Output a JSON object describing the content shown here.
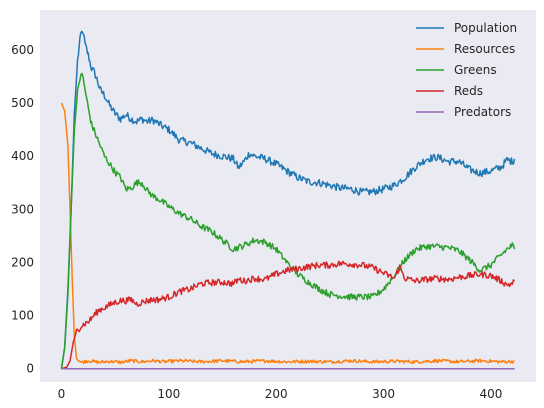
{
  "chart_data": {
    "type": "line",
    "title": "",
    "xlabel": "",
    "ylabel": "",
    "xlim": [
      -20,
      442
    ],
    "ylim": [
      -25,
      675
    ],
    "xticks": [
      0,
      100,
      200,
      300,
      400
    ],
    "yticks": [
      0,
      100,
      200,
      300,
      400,
      500,
      600
    ],
    "grid": false,
    "background": "#eaeaf2",
    "legend_position": "top-right",
    "series": [
      {
        "name": "Population",
        "color": "#1f77b4",
        "points": [
          [
            0,
            0
          ],
          [
            3,
            40
          ],
          [
            6,
            150
          ],
          [
            9,
            300
          ],
          [
            12,
            480
          ],
          [
            15,
            580
          ],
          [
            18,
            630
          ],
          [
            20,
            635
          ],
          [
            22,
            610
          ],
          [
            25,
            590
          ],
          [
            28,
            565
          ],
          [
            30,
            560
          ],
          [
            33,
            545
          ],
          [
            36,
            525
          ],
          [
            40,
            515
          ],
          [
            45,
            495
          ],
          [
            50,
            480
          ],
          [
            55,
            470
          ],
          [
            60,
            478
          ],
          [
            65,
            470
          ],
          [
            70,
            465
          ],
          [
            75,
            470
          ],
          [
            80,
            465
          ],
          [
            85,
            468
          ],
          [
            90,
            462
          ],
          [
            95,
            455
          ],
          [
            100,
            450
          ],
          [
            110,
            430
          ],
          [
            120,
            425
          ],
          [
            130,
            415
          ],
          [
            140,
            405
          ],
          [
            150,
            400
          ],
          [
            160,
            395
          ],
          [
            165,
            378
          ],
          [
            170,
            390
          ],
          [
            175,
            405
          ],
          [
            180,
            400
          ],
          [
            190,
            395
          ],
          [
            200,
            385
          ],
          [
            210,
            372
          ],
          [
            220,
            360
          ],
          [
            230,
            352
          ],
          [
            240,
            350
          ],
          [
            250,
            345
          ],
          [
            260,
            340
          ],
          [
            270,
            338
          ],
          [
            280,
            332
          ],
          [
            290,
            333
          ],
          [
            300,
            338
          ],
          [
            310,
            345
          ],
          [
            320,
            360
          ],
          [
            330,
            380
          ],
          [
            340,
            395
          ],
          [
            350,
            398
          ],
          [
            360,
            390
          ],
          [
            370,
            390
          ],
          [
            380,
            375
          ],
          [
            390,
            368
          ],
          [
            400,
            372
          ],
          [
            410,
            380
          ],
          [
            415,
            393
          ],
          [
            420,
            390
          ],
          [
            422,
            395
          ]
        ]
      },
      {
        "name": "Resources",
        "color": "#ff7f0e",
        "points": [
          [
            0,
            500
          ],
          [
            3,
            485
          ],
          [
            6,
            420
          ],
          [
            8,
            300
          ],
          [
            10,
            170
          ],
          [
            12,
            60
          ],
          [
            14,
            20
          ],
          [
            18,
            12
          ],
          [
            25,
            15
          ],
          [
            35,
            12
          ],
          [
            45,
            14
          ],
          [
            55,
            12
          ],
          [
            65,
            15
          ],
          [
            75,
            13
          ],
          [
            85,
            15
          ],
          [
            95,
            13
          ],
          [
            110,
            15
          ],
          [
            130,
            13
          ],
          [
            150,
            15
          ],
          [
            170,
            13
          ],
          [
            190,
            15
          ],
          [
            210,
            13
          ],
          [
            230,
            14
          ],
          [
            250,
            13
          ],
          [
            270,
            15
          ],
          [
            290,
            13
          ],
          [
            310,
            14
          ],
          [
            330,
            13
          ],
          [
            350,
            15
          ],
          [
            370,
            13
          ],
          [
            390,
            15
          ],
          [
            410,
            13
          ],
          [
            422,
            14
          ]
        ]
      },
      {
        "name": "Greens",
        "color": "#2ca02c",
        "points": [
          [
            0,
            0
          ],
          [
            3,
            40
          ],
          [
            6,
            140
          ],
          [
            9,
            300
          ],
          [
            12,
            450
          ],
          [
            15,
            520
          ],
          [
            18,
            555
          ],
          [
            20,
            548
          ],
          [
            22,
            525
          ],
          [
            25,
            490
          ],
          [
            28,
            460
          ],
          [
            32,
            440
          ],
          [
            36,
            420
          ],
          [
            40,
            400
          ],
          [
            45,
            385
          ],
          [
            50,
            370
          ],
          [
            55,
            360
          ],
          [
            60,
            338
          ],
          [
            65,
            340
          ],
          [
            70,
            350
          ],
          [
            75,
            350
          ],
          [
            80,
            335
          ],
          [
            85,
            325
          ],
          [
            90,
            320
          ],
          [
            100,
            305
          ],
          [
            110,
            292
          ],
          [
            120,
            282
          ],
          [
            130,
            268
          ],
          [
            140,
            258
          ],
          [
            150,
            242
          ],
          [
            160,
            225
          ],
          [
            170,
            232
          ],
          [
            180,
            242
          ],
          [
            190,
            238
          ],
          [
            200,
            225
          ],
          [
            210,
            200
          ],
          [
            220,
            178
          ],
          [
            230,
            163
          ],
          [
            240,
            150
          ],
          [
            250,
            140
          ],
          [
            260,
            137
          ],
          [
            270,
            135
          ],
          [
            280,
            135
          ],
          [
            290,
            135
          ],
          [
            300,
            150
          ],
          [
            310,
            175
          ],
          [
            320,
            205
          ],
          [
            330,
            225
          ],
          [
            340,
            230
          ],
          [
            350,
            230
          ],
          [
            360,
            228
          ],
          [
            370,
            222
          ],
          [
            380,
            205
          ],
          [
            390,
            185
          ],
          [
            400,
            195
          ],
          [
            410,
            215
          ],
          [
            415,
            225
          ],
          [
            420,
            232
          ],
          [
            422,
            225
          ]
        ]
      },
      {
        "name": "Reds",
        "color": "#d62728",
        "points": [
          [
            0,
            0
          ],
          [
            5,
            3
          ],
          [
            8,
            15
          ],
          [
            11,
            50
          ],
          [
            14,
            70
          ],
          [
            18,
            80
          ],
          [
            22,
            85
          ],
          [
            26,
            90
          ],
          [
            30,
            100
          ],
          [
            35,
            110
          ],
          [
            40,
            115
          ],
          [
            45,
            120
          ],
          [
            50,
            125
          ],
          [
            55,
            128
          ],
          [
            60,
            128
          ],
          [
            65,
            130
          ],
          [
            70,
            122
          ],
          [
            75,
            125
          ],
          [
            80,
            128
          ],
          [
            85,
            130
          ],
          [
            90,
            130
          ],
          [
            100,
            135
          ],
          [
            110,
            145
          ],
          [
            120,
            150
          ],
          [
            130,
            160
          ],
          [
            140,
            162
          ],
          [
            150,
            163
          ],
          [
            160,
            160
          ],
          [
            165,
            168
          ],
          [
            170,
            165
          ],
          [
            180,
            170
          ],
          [
            190,
            168
          ],
          [
            200,
            178
          ],
          [
            210,
            185
          ],
          [
            220,
            188
          ],
          [
            230,
            192
          ],
          [
            240,
            195
          ],
          [
            250,
            195
          ],
          [
            260,
            198
          ],
          [
            270,
            197
          ],
          [
            280,
            195
          ],
          [
            290,
            190
          ],
          [
            300,
            180
          ],
          [
            310,
            170
          ],
          [
            315,
            192
          ],
          [
            320,
            170
          ],
          [
            330,
            165
          ],
          [
            340,
            168
          ],
          [
            350,
            170
          ],
          [
            360,
            168
          ],
          [
            370,
            172
          ],
          [
            380,
            175
          ],
          [
            390,
            178
          ],
          [
            400,
            175
          ],
          [
            410,
            165
          ],
          [
            415,
            158
          ],
          [
            420,
            160
          ],
          [
            422,
            165
          ]
        ]
      },
      {
        "name": "Predators",
        "color": "#9467bd",
        "points": [
          [
            0,
            0
          ],
          [
            422,
            0
          ]
        ]
      }
    ]
  }
}
